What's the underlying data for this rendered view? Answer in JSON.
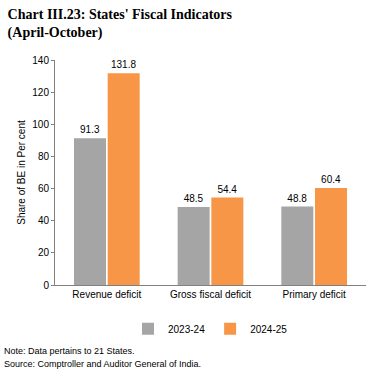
{
  "chart_data": {
    "type": "bar",
    "title": "Chart III.23: States' Fiscal Indicators",
    "subtitle": "(April-October)",
    "y_label": "Share of BE in Per cent",
    "categories": [
      "Revenue deficit",
      "Gross fiscal deficit",
      "Primary deficit"
    ],
    "series": [
      {
        "name": "2023-24",
        "color": "#a5a5a5",
        "values": [
          91.3,
          48.5,
          48.8
        ],
        "value_labels": [
          "91.3",
          "48.5",
          "48.8"
        ]
      },
      {
        "name": "2024-25",
        "color": "#f79646",
        "values": [
          131.8,
          54.4,
          60.4
        ],
        "value_labels": [
          "131.8",
          "54.4",
          "60.4"
        ]
      }
    ],
    "ylim": [
      0,
      140
    ],
    "yticks": [
      0,
      20,
      40,
      60,
      80,
      100,
      120,
      140
    ],
    "grid": false,
    "legend": "bottom",
    "data_labels": true,
    "annotations": [
      "Note: Data pertains to 21 States.",
      "Source: Comptroller and Auditor General of India."
    ]
  }
}
